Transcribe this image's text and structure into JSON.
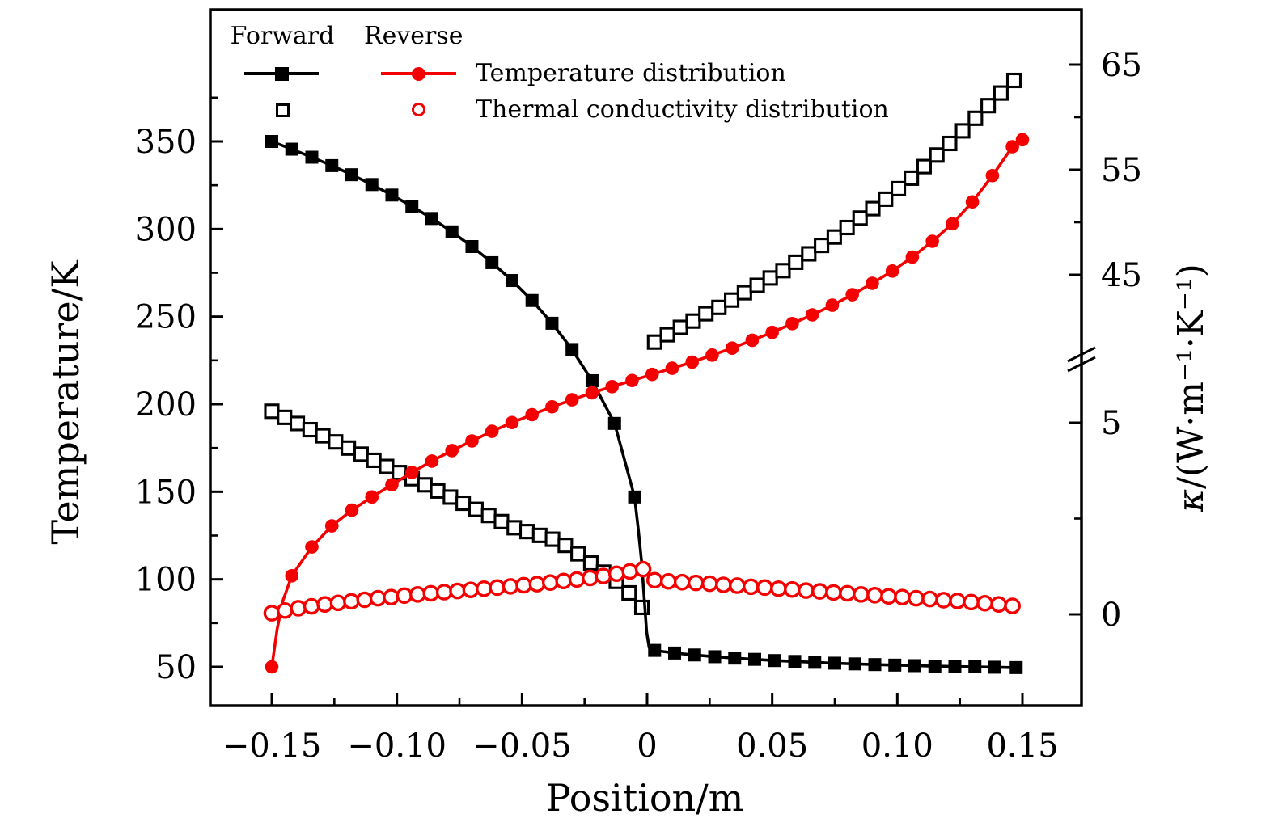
{
  "figure": {
    "legend": {
      "col_forward": "Forward",
      "col_reverse": "Reverse",
      "rows": [
        {
          "label": "Temperature distribution"
        },
        {
          "label": "Thermal conductivity distribution"
        }
      ]
    }
  },
  "chart_data": {
    "type": "line",
    "title": "",
    "xlabel": "Position/m",
    "ylabel_left": "Temperature/K",
    "ylabel_right_symbol": "κ",
    "ylabel_right_rest": "/(W·m⁻¹·K⁻¹)",
    "colors": {
      "forward": "#000000",
      "reverse": "#f40000"
    },
    "axes": {
      "x": {
        "range": [
          -0.175,
          0.174
        ],
        "majors": [
          {
            "v": -0.15,
            "label": "−0.15"
          },
          {
            "v": -0.1,
            "label": "−0.10"
          },
          {
            "v": -0.05,
            "label": "−0.05"
          },
          {
            "v": 0,
            "label": "0"
          },
          {
            "v": 0.05,
            "label": "0.05"
          },
          {
            "v": 0.1,
            "label": "0.10"
          },
          {
            "v": 0.15,
            "label": "0.15"
          }
        ],
        "minors": [
          -0.125,
          -0.075,
          -0.025,
          0.025,
          0.075,
          0.125
        ]
      },
      "y_left": {
        "majors": [
          {
            "v": 50,
            "label": "50"
          },
          {
            "v": 100,
            "label": "100"
          },
          {
            "v": 150,
            "label": "150"
          },
          {
            "v": 200,
            "label": "200"
          },
          {
            "v": 250,
            "label": "250"
          },
          {
            "v": 300,
            "label": "300"
          },
          {
            "v": 350,
            "label": "350"
          }
        ],
        "minors": [
          75,
          125,
          175,
          225,
          275,
          325,
          375
        ]
      },
      "y_right": {
        "has_break": true,
        "below_break_range": [
          0,
          6.5
        ],
        "above_break_range": [
          36.5,
          70
        ],
        "majors": [
          {
            "v": 0,
            "label": "0"
          },
          {
            "v": 5,
            "label": "5"
          },
          {
            "v": 45,
            "label": "45"
          },
          {
            "v": 55,
            "label": "55"
          },
          {
            "v": 65,
            "label": "65"
          }
        ],
        "minors": [
          2.5,
          50,
          60
        ]
      }
    },
    "series": [
      {
        "id": "forward-kappa",
        "legend": "Forward thermal conductivity distribution",
        "color": "#000000",
        "marker": "square",
        "filled": false,
        "line": false,
        "axis": "kappa",
        "markers": [
          [
            -0.15,
            5.3
          ],
          [
            -0.1449,
            5.14
          ],
          [
            -0.1398,
            4.98
          ],
          [
            -0.1347,
            4.82
          ],
          [
            -0.1296,
            4.66
          ],
          [
            -0.1245,
            4.5
          ],
          [
            -0.1194,
            4.34
          ],
          [
            -0.1143,
            4.18
          ],
          [
            -0.1092,
            4.02
          ],
          [
            -0.1041,
            3.86
          ],
          [
            -0.099,
            3.7
          ],
          [
            -0.0939,
            3.54
          ],
          [
            -0.0888,
            3.38
          ],
          [
            -0.0837,
            3.22
          ],
          [
            -0.0786,
            3.06
          ],
          [
            -0.0735,
            2.9
          ],
          [
            -0.0684,
            2.74
          ],
          [
            -0.0633,
            2.58
          ],
          [
            -0.0582,
            2.42
          ],
          [
            -0.0531,
            2.26
          ],
          [
            -0.048,
            2.16
          ],
          [
            -0.0429,
            2.06
          ],
          [
            -0.0378,
            1.96
          ],
          [
            -0.0327,
            1.8
          ],
          [
            -0.0276,
            1.58
          ],
          [
            -0.0225,
            1.34
          ],
          [
            -0.0174,
            1.1
          ],
          [
            -0.0123,
            0.86
          ],
          [
            -0.0072,
            0.56
          ],
          [
            -0.0021,
            0.18
          ],
          [
            0.003,
            38.6
          ],
          [
            0.0081,
            39.3
          ],
          [
            0.0133,
            40.0
          ],
          [
            0.0184,
            40.6
          ],
          [
            0.0235,
            41.3
          ],
          [
            0.0287,
            41.9
          ],
          [
            0.0338,
            42.6
          ],
          [
            0.0389,
            43.3
          ],
          [
            0.044,
            44.0
          ],
          [
            0.0492,
            44.7
          ],
          [
            0.0543,
            45.4
          ],
          [
            0.0594,
            46.2
          ],
          [
            0.0646,
            47.0
          ],
          [
            0.0697,
            47.8
          ],
          [
            0.0748,
            48.6
          ],
          [
            0.0799,
            49.5
          ],
          [
            0.0851,
            50.4
          ],
          [
            0.0902,
            51.3
          ],
          [
            0.0953,
            52.2
          ],
          [
            0.1004,
            53.2
          ],
          [
            0.1056,
            54.2
          ],
          [
            0.1107,
            55.3
          ],
          [
            0.1158,
            56.4
          ],
          [
            0.1209,
            57.5
          ],
          [
            0.1261,
            58.7
          ],
          [
            0.1312,
            59.9
          ],
          [
            0.1363,
            61.1
          ],
          [
            0.1414,
            62.3
          ],
          [
            0.1466,
            63.5
          ]
        ],
        "line_extra": []
      },
      {
        "id": "forward-temperature",
        "legend": "Forward temperature distribution",
        "color": "#000000",
        "marker": "square",
        "filled": true,
        "line": true,
        "axis": "temp",
        "markers": [
          [
            -0.15,
            350.0
          ],
          [
            -0.142,
            345.6
          ],
          [
            -0.134,
            341.0
          ],
          [
            -0.126,
            336.2
          ],
          [
            -0.118,
            331.0
          ],
          [
            -0.11,
            325.4
          ],
          [
            -0.102,
            319.4
          ],
          [
            -0.094,
            313.0
          ],
          [
            -0.086,
            306.0
          ],
          [
            -0.078,
            298.4
          ],
          [
            -0.07,
            290.0
          ],
          [
            -0.062,
            280.8
          ],
          [
            -0.054,
            270.6
          ],
          [
            -0.046,
            259.2
          ],
          [
            -0.038,
            246.2
          ],
          [
            -0.03,
            231.2
          ],
          [
            -0.022,
            213.4
          ],
          [
            -0.013,
            189.0
          ],
          [
            -0.005,
            147.0
          ],
          [
            0.003,
            59.4
          ],
          [
            0.011,
            57.9
          ],
          [
            0.019,
            56.8
          ],
          [
            0.027,
            55.8
          ],
          [
            0.035,
            55.0
          ],
          [
            0.043,
            54.3
          ],
          [
            0.051,
            53.6
          ],
          [
            0.059,
            53.1
          ],
          [
            0.067,
            52.6
          ],
          [
            0.075,
            52.1
          ],
          [
            0.083,
            51.7
          ],
          [
            0.091,
            51.3
          ],
          [
            0.099,
            51.0
          ],
          [
            0.107,
            50.7
          ],
          [
            0.115,
            50.4
          ],
          [
            0.123,
            50.2
          ],
          [
            0.131,
            50.0
          ],
          [
            0.139,
            49.8
          ],
          [
            0.1475,
            49.6
          ]
        ],
        "line_extra": [
          [
            -0.0035,
            128
          ],
          [
            -0.0022,
            110
          ],
          [
            -0.0011,
            88
          ],
          [
            -0.0002,
            70
          ],
          [
            0.0008,
            61
          ]
        ]
      },
      {
        "id": "reverse-temperature",
        "legend": "Reverse temperature distribution",
        "color": "#f40000",
        "marker": "circle",
        "filled": true,
        "line": true,
        "axis": "temp",
        "markers": [
          [
            -0.15,
            50.0
          ],
          [
            -0.142,
            102.0
          ],
          [
            -0.134,
            118.5
          ],
          [
            -0.126,
            130.5
          ],
          [
            -0.118,
            139.5
          ],
          [
            -0.11,
            147.0
          ],
          [
            -0.102,
            154.0
          ],
          [
            -0.094,
            161.0
          ],
          [
            -0.086,
            167.5
          ],
          [
            -0.078,
            173.5
          ],
          [
            -0.07,
            179.0
          ],
          [
            -0.062,
            184.5
          ],
          [
            -0.054,
            189.5
          ],
          [
            -0.046,
            194.0
          ],
          [
            -0.038,
            198.5
          ],
          [
            -0.03,
            202.5
          ],
          [
            -0.022,
            206.5
          ],
          [
            -0.014,
            210.0
          ],
          [
            -0.006,
            213.5
          ],
          [
            0.002,
            217.0
          ],
          [
            0.01,
            220.5
          ],
          [
            0.018,
            224.0
          ],
          [
            0.026,
            228.0
          ],
          [
            0.034,
            232.0
          ],
          [
            0.042,
            236.5
          ],
          [
            0.05,
            241.0
          ],
          [
            0.058,
            246.0
          ],
          [
            0.066,
            251.0
          ],
          [
            0.074,
            256.5
          ],
          [
            0.082,
            262.5
          ],
          [
            0.09,
            269.0
          ],
          [
            0.098,
            276.0
          ],
          [
            0.106,
            284.0
          ],
          [
            0.114,
            293.0
          ],
          [
            0.122,
            303.0
          ],
          [
            0.13,
            315.5
          ],
          [
            0.138,
            330.5
          ],
          [
            0.146,
            347.0
          ],
          [
            0.15,
            351.0
          ]
        ],
        "line_extra": [
          [
            -0.1478,
            72
          ],
          [
            -0.1455,
            88
          ]
        ]
      },
      {
        "id": "reverse-kappa",
        "legend": "Reverse thermal conductivity distribution",
        "color": "#f40000",
        "marker": "circle",
        "filled": false,
        "line": false,
        "axis": "kappa",
        "markers": [
          [
            -0.15,
            0.03
          ],
          [
            -0.1447,
            0.1
          ],
          [
            -0.1394,
            0.16
          ],
          [
            -0.1341,
            0.21
          ],
          [
            -0.1288,
            0.26
          ],
          [
            -0.1235,
            0.3
          ],
          [
            -0.1182,
            0.34
          ],
          [
            -0.1129,
            0.38
          ],
          [
            -0.1076,
            0.42
          ],
          [
            -0.1023,
            0.45
          ],
          [
            -0.097,
            0.49
          ],
          [
            -0.0917,
            0.52
          ],
          [
            -0.0864,
            0.55
          ],
          [
            -0.0811,
            0.58
          ],
          [
            -0.0758,
            0.61
          ],
          [
            -0.0705,
            0.64
          ],
          [
            -0.0652,
            0.67
          ],
          [
            -0.0599,
            0.7
          ],
          [
            -0.0546,
            0.73
          ],
          [
            -0.0493,
            0.76
          ],
          [
            -0.044,
            0.79
          ],
          [
            -0.0387,
            0.83
          ],
          [
            -0.0334,
            0.87
          ],
          [
            -0.0281,
            0.91
          ],
          [
            -0.0228,
            0.95
          ],
          [
            -0.0175,
            1.0
          ],
          [
            -0.0122,
            1.06
          ],
          [
            -0.0069,
            1.12
          ],
          [
            -0.0016,
            1.18
          ],
          [
            0.003,
            0.89
          ],
          [
            0.0085,
            0.86
          ],
          [
            0.014,
            0.84
          ],
          [
            0.0195,
            0.82
          ],
          [
            0.025,
            0.8
          ],
          [
            0.0305,
            0.77
          ],
          [
            0.036,
            0.75
          ],
          [
            0.0415,
            0.72
          ],
          [
            0.047,
            0.7
          ],
          [
            0.0525,
            0.67
          ],
          [
            0.058,
            0.65
          ],
          [
            0.0635,
            0.62
          ],
          [
            0.069,
            0.6
          ],
          [
            0.0745,
            0.57
          ],
          [
            0.08,
            0.55
          ],
          [
            0.0855,
            0.52
          ],
          [
            0.091,
            0.5
          ],
          [
            0.0965,
            0.47
          ],
          [
            0.102,
            0.45
          ],
          [
            0.1075,
            0.42
          ],
          [
            0.113,
            0.4
          ],
          [
            0.1185,
            0.37
          ],
          [
            0.124,
            0.35
          ],
          [
            0.1295,
            0.32
          ],
          [
            0.135,
            0.29
          ],
          [
            0.1405,
            0.26
          ],
          [
            0.146,
            0.22
          ]
        ],
        "line_extra": []
      }
    ]
  }
}
